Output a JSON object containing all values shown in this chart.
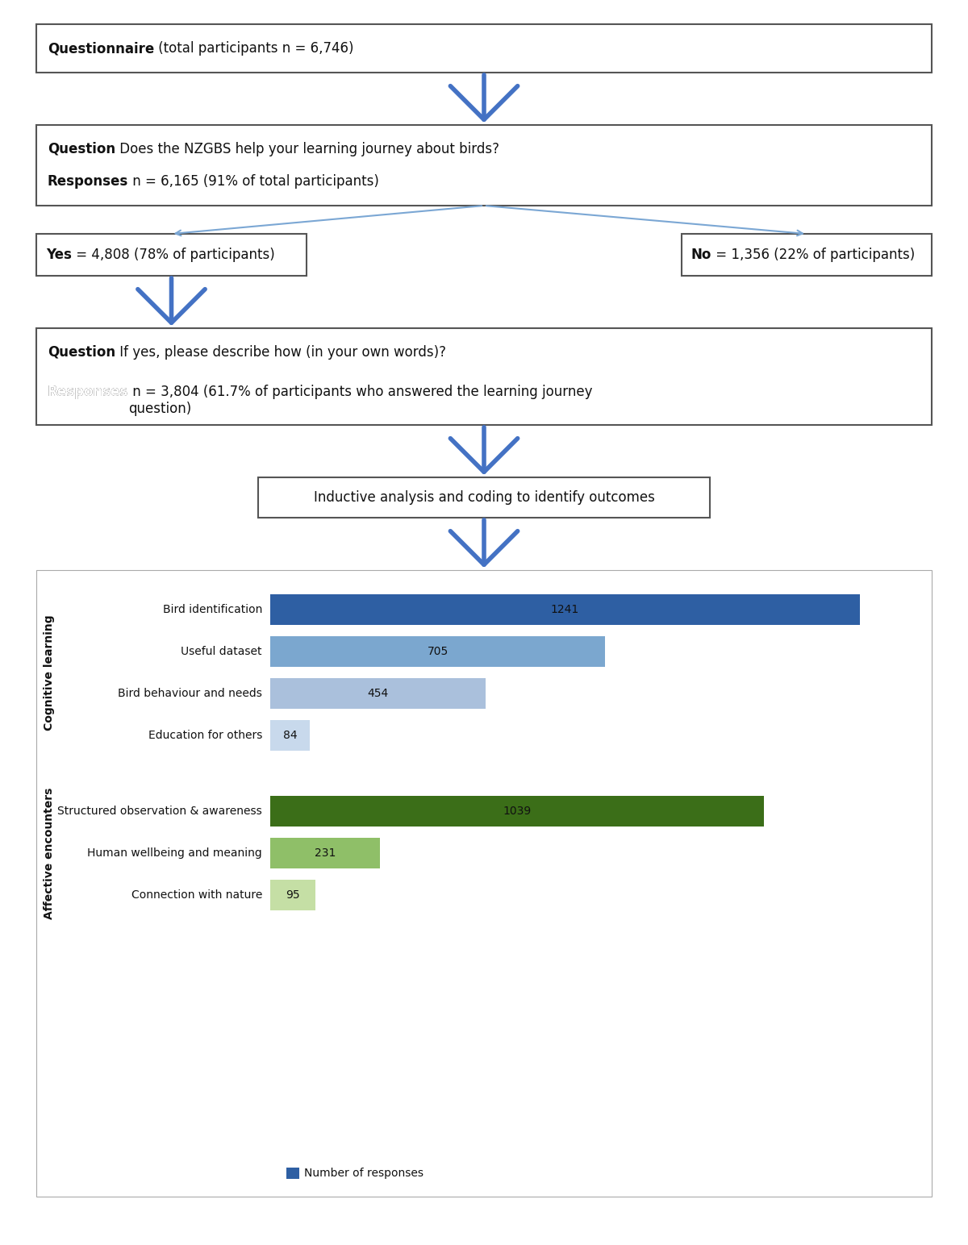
{
  "box1_bold": "Questionnaire",
  "box1_regular": " (total participants n = 6,746)",
  "box2_bold": "Question",
  "box2_regular": " Does the NZGBS help your learning journey about birds?",
  "box2_bold2": "Responses",
  "box2_regular2": " n = 6,165 (91% of total participants)",
  "box_yes_bold": "Yes",
  "box_yes_regular": " = 4,808 (78% of participants)",
  "box_no_bold": "No",
  "box_no_regular": " = 1,356 (22% of participants)",
  "box3_bold": "Question",
  "box3_regular": " If yes, please describe how (in your own words)?",
  "box3_bold2": "Responses",
  "box3_regular2": " n = 3,804 (61.7% of participants who answered the learning journey\nquestion)",
  "box_inductive": "Inductive analysis and coding to identify outcomes",
  "arrow_color": "#4472C4",
  "arrow_thin_color": "#7BA7D4",
  "box_border_color": "#555555",
  "bar_categories_cognitive": [
    "Bird identification",
    "Useful dataset",
    "Bird behaviour and needs",
    "Education for others"
  ],
  "bar_values_cognitive": [
    1241,
    705,
    454,
    84
  ],
  "bar_colors_cognitive": [
    "#2E5FA3",
    "#7BA7CF",
    "#AAC0DC",
    "#C8D9EC"
  ],
  "bar_categories_affective": [
    "Structured observation & awareness",
    "Human wellbeing and meaning",
    "Connection with nature"
  ],
  "bar_values_affective": [
    1039,
    231,
    95
  ],
  "bar_colors_affective": [
    "#3B6E18",
    "#8FBF68",
    "#C5DFA5"
  ],
  "group_label_cognitive": "Cognitive learning",
  "group_label_affective": "Affective encounters",
  "legend_label": "Number of responses",
  "legend_color": "#2E5FA3",
  "font_size_box": 12,
  "font_size_bar_label": 10,
  "font_size_cat_label": 10,
  "font_size_group": 10,
  "max_value": 1350,
  "figw": 12.0,
  "figh": 15.44
}
